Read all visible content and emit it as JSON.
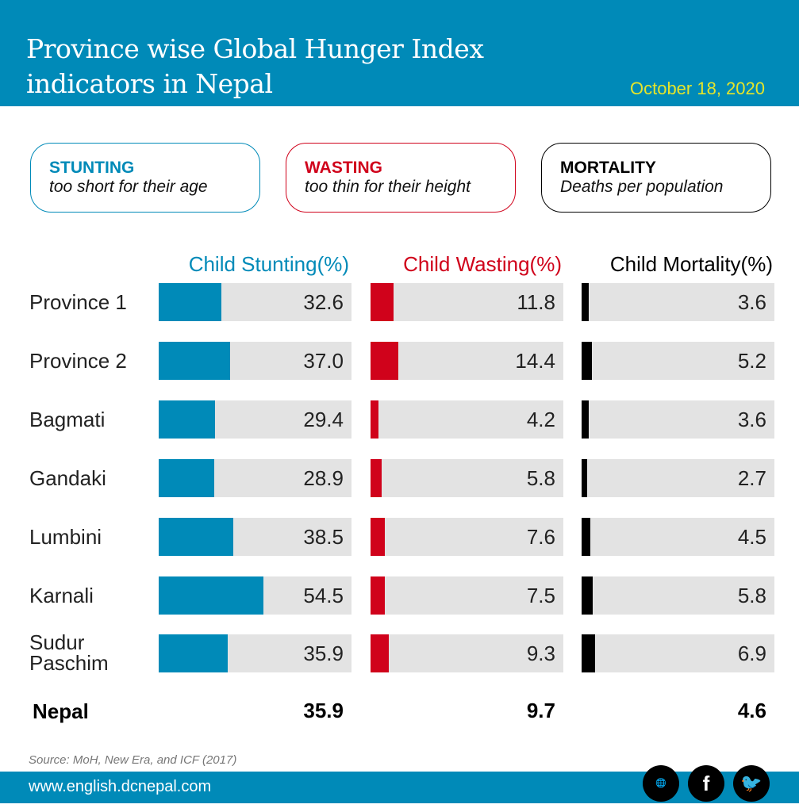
{
  "header": {
    "title": "Province wise Global Hunger Index indicators in Nepal",
    "date": "October 18, 2020"
  },
  "legend": [
    {
      "heading": "STUNTING",
      "sub": "too short for their age",
      "color": "#008ab8"
    },
    {
      "heading": "WASTING",
      "sub": "too thin for their height",
      "color": "#d0021b"
    },
    {
      "heading": "MORTALITY",
      "sub": "Deaths per population",
      "color": "#000000"
    }
  ],
  "chart_data": {
    "type": "bar",
    "categories": [
      "Province 1",
      "Province 2",
      "Bagmati",
      "Gandaki",
      "Lumbini",
      "Karnali",
      "Sudur Paschim"
    ],
    "xlim": [
      0,
      100
    ],
    "series": [
      {
        "name": "Child Stunting(%)",
        "color": "#008ab8",
        "values": [
          "32.6",
          "37.0",
          "29.4",
          "28.9",
          "38.5",
          "54.5",
          "35.9"
        ],
        "total": "35.9"
      },
      {
        "name": "Child Wasting(%)",
        "color": "#d0021b",
        "values": [
          "11.8",
          "14.4",
          "4.2",
          "5.8",
          "7.6",
          "7.5",
          "9.3"
        ],
        "total": "9.7"
      },
      {
        "name": "Child Mortality(%)",
        "color": "#000000",
        "values": [
          "3.6",
          "5.2",
          "3.6",
          "2.7",
          "4.5",
          "5.8",
          "6.9"
        ],
        "total": "4.6"
      }
    ],
    "total_label": "Nepal"
  },
  "footer": {
    "source": "Source:  MoH, New Era, and ICF (2017)",
    "url": "www.english.dcnepal.com",
    "icons": [
      "globe-www-icon",
      "facebook-icon",
      "twitter-icon"
    ]
  }
}
